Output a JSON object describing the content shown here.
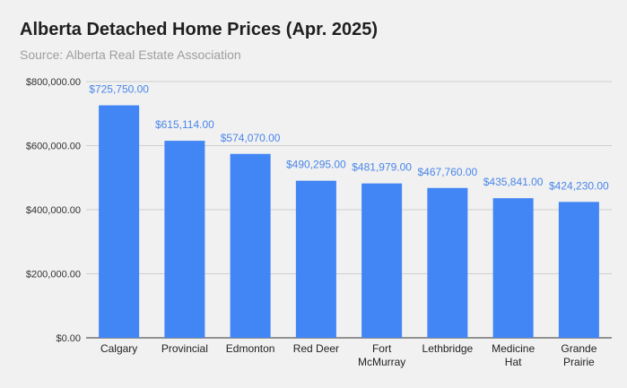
{
  "chart_data": {
    "type": "bar",
    "title": "Alberta Detached Home Prices (Apr. 2025)",
    "subtitle": "Source: Alberta Real Estate Association",
    "xlabel": "",
    "ylabel": "",
    "categories": [
      [
        "Calgary"
      ],
      [
        "Provincial"
      ],
      [
        "Edmonton"
      ],
      [
        "Red Deer"
      ],
      [
        "Fort",
        "McMurray"
      ],
      [
        "Lethbridge"
      ],
      [
        "Medicine",
        "Hat"
      ],
      [
        "Grande",
        "Prairie"
      ]
    ],
    "values": [
      725750,
      615114,
      574070,
      490295,
      481979,
      467760,
      435841,
      424230
    ],
    "data_labels": [
      "$725,750.00",
      "$615,114.00",
      "$574,070.00",
      "$490,295.00",
      "$481,979.00",
      "$467,760.00",
      "$435,841.00",
      "$424,230.00"
    ],
    "ylim": [
      0,
      800000
    ],
    "yticks": [
      0,
      200000,
      400000,
      600000,
      800000
    ],
    "ytick_labels": [
      "$0.00",
      "$200,000.00",
      "$400,000.00",
      "$600,000.00",
      "$800,000.00"
    ],
    "grid": true,
    "legend": "none",
    "colors": {
      "bar": "#4285f4",
      "label": "#4a86e8",
      "grid": "#cfcfcf"
    }
  }
}
